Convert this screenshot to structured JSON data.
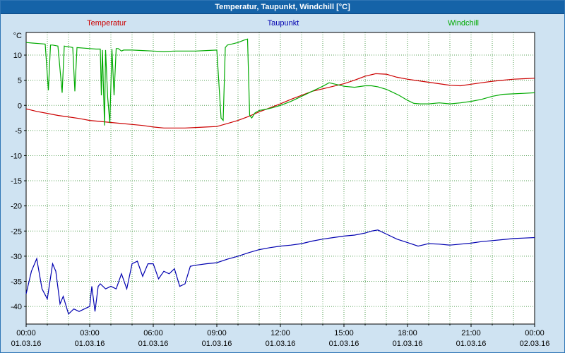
{
  "window": {
    "title": "Temperatur, Taupunkt, Windchill [°C]",
    "colors": {
      "titlebar_bg": "#1563a8",
      "titlebar_text": "#ffffff",
      "window_bg": "#cfe3f2",
      "plot_bg": "#ffffff",
      "plot_border": "#000000",
      "grid": "#55a055",
      "axis_text": "#000000"
    }
  },
  "chart_data": {
    "type": "line",
    "title": "Temperatur, Taupunkt, Windchill [°C]",
    "ylabel": "°C",
    "ylim": [
      -43.5,
      14.5
    ],
    "yticks": [
      10,
      5,
      0,
      -5,
      -10,
      -15,
      -20,
      -25,
      -30,
      -35,
      -40
    ],
    "xlim": [
      0,
      24
    ],
    "grid": "dotted, vertical every 1h, horizontal every 5°C",
    "legend_position": "top",
    "xticks": [
      {
        "hour": 0,
        "time": "00:00",
        "date": "01.03.16"
      },
      {
        "hour": 3,
        "time": "03:00",
        "date": "01.03.16"
      },
      {
        "hour": 6,
        "time": "06:00",
        "date": "01.03.16"
      },
      {
        "hour": 9,
        "time": "09:00",
        "date": "01.03.16"
      },
      {
        "hour": 12,
        "time": "12:00",
        "date": "01.03.16"
      },
      {
        "hour": 15,
        "time": "15:00",
        "date": "01.03.16"
      },
      {
        "hour": 18,
        "time": "18:00",
        "date": "01.03.16"
      },
      {
        "hour": 21,
        "time": "21:00",
        "date": "01.03.16"
      },
      {
        "hour": 24,
        "time": "00:00",
        "date": "02.03.16"
      }
    ],
    "series": [
      {
        "name": "Temperatur",
        "color": "#cc0000",
        "x": [
          0,
          0.5,
          1,
          1.5,
          2,
          2.5,
          3,
          3.5,
          4,
          4.5,
          5,
          5.5,
          6,
          6.5,
          7,
          7.5,
          8,
          8.5,
          9,
          9.5,
          10,
          10.5,
          11,
          11.5,
          12,
          12.5,
          13,
          13.5,
          14,
          14.5,
          15,
          15.5,
          16,
          16.5,
          17,
          17.5,
          18,
          18.5,
          19,
          19.5,
          20,
          20.5,
          21,
          21.5,
          22,
          22.5,
          23,
          23.5,
          24
        ],
        "values": [
          -0.7,
          -1.2,
          -1.6,
          -2.0,
          -2.3,
          -2.6,
          -3.0,
          -3.2,
          -3.4,
          -3.6,
          -3.8,
          -4.0,
          -4.3,
          -4.5,
          -4.5,
          -4.5,
          -4.4,
          -4.3,
          -4.2,
          -3.6,
          -3.0,
          -2.2,
          -1.3,
          -0.5,
          0.3,
          1.2,
          2.0,
          2.8,
          3.3,
          3.8,
          4.3,
          5.0,
          5.8,
          6.3,
          6.2,
          5.6,
          5.2,
          4.9,
          4.6,
          4.3,
          4.0,
          3.9,
          4.2,
          4.5,
          4.8,
          5.0,
          5.2,
          5.3,
          5.4
        ]
      },
      {
        "name": "Taupunkt",
        "color": "#0000b0",
        "x": [
          0,
          0.25,
          0.5,
          0.75,
          1.0,
          1.25,
          1.4,
          1.6,
          1.75,
          2.0,
          2.25,
          2.5,
          2.75,
          3.0,
          3.1,
          3.25,
          3.4,
          3.5,
          3.75,
          4.0,
          4.25,
          4.5,
          4.75,
          5.0,
          5.25,
          5.5,
          5.75,
          6.0,
          6.25,
          6.5,
          6.75,
          7.0,
          7.25,
          7.5,
          7.75,
          8.0,
          8.5,
          9.0,
          9.5,
          10.0,
          10.5,
          11.0,
          11.5,
          12.0,
          12.5,
          13.0,
          13.5,
          14.0,
          14.5,
          15.0,
          15.5,
          16.0,
          16.3,
          16.6,
          17.0,
          17.5,
          18.0,
          18.5,
          19.0,
          19.5,
          20.0,
          20.5,
          21.0,
          21.5,
          22.0,
          22.5,
          23.0,
          23.5,
          24.0
        ],
        "values": [
          -37.5,
          -33.0,
          -30.5,
          -36.5,
          -38.5,
          -31.5,
          -33.0,
          -39.5,
          -38.0,
          -41.5,
          -40.5,
          -41.0,
          -40.5,
          -40.0,
          -36.0,
          -41.0,
          -36.0,
          -35.5,
          -36.5,
          -36.0,
          -36.5,
          -33.5,
          -36.5,
          -31.5,
          -31.0,
          -34.0,
          -31.5,
          -31.5,
          -34.5,
          -33.0,
          -33.5,
          -32.5,
          -36.0,
          -35.5,
          -32.0,
          -31.8,
          -31.5,
          -31.3,
          -30.6,
          -30.0,
          -29.3,
          -28.7,
          -28.3,
          -28.0,
          -27.8,
          -27.5,
          -27.0,
          -26.6,
          -26.3,
          -26.0,
          -25.8,
          -25.4,
          -25.0,
          -24.8,
          -25.6,
          -26.6,
          -27.3,
          -28.0,
          -27.5,
          -27.6,
          -27.8,
          -27.6,
          -27.4,
          -27.1,
          -26.9,
          -26.7,
          -26.5,
          -26.4,
          -26.3
        ]
      },
      {
        "name": "Windchill",
        "color": "#00aa00",
        "x": [
          0,
          0.3,
          0.6,
          0.9,
          1.05,
          1.15,
          1.25,
          1.5,
          1.7,
          1.8,
          1.9,
          2.1,
          2.2,
          2.3,
          2.4,
          3.0,
          3.3,
          3.5,
          3.55,
          3.6,
          3.7,
          3.75,
          3.85,
          3.95,
          4.05,
          4.15,
          4.25,
          4.35,
          4.5,
          4.6,
          5.0,
          5.5,
          6.0,
          6.5,
          7.0,
          7.5,
          8.0,
          8.5,
          9.0,
          9.2,
          9.3,
          9.4,
          9.5,
          9.7,
          10.0,
          10.3,
          10.45,
          10.55,
          10.65,
          10.8,
          11.0,
          11.3,
          11.6,
          12.0,
          12.5,
          13.0,
          13.5,
          14.0,
          14.3,
          14.6,
          15.0,
          15.5,
          16.0,
          16.3,
          16.6,
          17.0,
          17.3,
          17.6,
          18.0,
          18.3,
          18.6,
          19.0,
          19.5,
          20.0,
          20.5,
          21.0,
          21.5,
          22.0,
          22.5,
          23.0,
          23.5,
          24.0
        ],
        "values": [
          12.5,
          12.4,
          12.3,
          12.2,
          3.0,
          12.0,
          12.0,
          11.8,
          2.5,
          11.8,
          11.7,
          11.6,
          11.5,
          2.8,
          11.5,
          11.3,
          11.2,
          11.2,
          2.0,
          11.0,
          -4.0,
          11.0,
          1.5,
          -3.5,
          11.2,
          2.0,
          11.3,
          11.3,
          10.8,
          11.0,
          11.0,
          10.9,
          10.8,
          10.7,
          10.8,
          10.8,
          10.8,
          10.9,
          11.0,
          -2.5,
          -3.0,
          11.5,
          12.0,
          12.2,
          12.5,
          13.0,
          13.2,
          -2.0,
          -2.5,
          -1.5,
          -1.0,
          -0.8,
          -0.5,
          0.0,
          0.8,
          1.8,
          2.8,
          3.8,
          4.5,
          4.2,
          3.8,
          3.6,
          3.9,
          3.9,
          3.7,
          3.2,
          2.6,
          2.0,
          1.0,
          0.4,
          0.3,
          0.3,
          0.5,
          0.3,
          0.5,
          0.8,
          1.2,
          1.8,
          2.2,
          2.3,
          2.4,
          2.5
        ]
      }
    ]
  }
}
